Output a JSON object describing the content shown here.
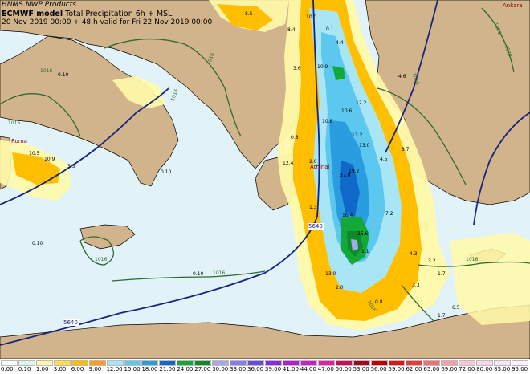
{
  "header": {
    "producer": "HNMS NWP Products",
    "model_name": "ECMWF model",
    "field": "Total Precipitation 6h + MSL",
    "valid": "20 Nov 2019 00:00 + 48 h valid for Fri 22 Nov 2019 00:00"
  },
  "places": [
    {
      "id": "athens",
      "label": "Athinai"
    },
    {
      "id": "ankara",
      "label": "Ankara"
    },
    {
      "id": "rome",
      "label": "Roma"
    }
  ],
  "geopotential_labels": [
    "5640",
    "5640"
  ],
  "isobar_labels": [
    "1016",
    "1016",
    "1016",
    "1016",
    "1016",
    "1016",
    "1016",
    "1016",
    "1016",
    "1020",
    "1020"
  ],
  "precip_values": [
    "8.5",
    "10.0",
    "0.1",
    "4.4",
    "8.4",
    "10.9",
    "12.2",
    "10.6",
    "13.2",
    "19.2",
    "13.0",
    "37.0",
    "10.8",
    "16.4",
    "25.6",
    "7.2",
    "4.3",
    "3.3",
    "1.7",
    "13.0",
    "0.8",
    "0.8",
    "3.6",
    "4.6",
    "12.4",
    "10.5",
    "10.9",
    "3.3",
    "2.0",
    "4.5",
    "8.7",
    "1.7",
    "6.5",
    "3.2",
    "1.1",
    "1.3",
    "2.0",
    "0.10",
    "0.10",
    "0.10",
    "0.10"
  ],
  "legend": {
    "values": [
      "0.00",
      "0.10",
      "1.00",
      "3.00",
      "6.00",
      "9.00",
      "12.00",
      "15.00",
      "18.00",
      "21.00",
      "24.00",
      "27.00",
      "30.00",
      "33.00",
      "36.00",
      "39.00",
      "41.00",
      "44.00",
      "47.00",
      "50.00",
      "53.00",
      "56.00",
      "59.00",
      "62.00",
      "65.00",
      "69.00",
      "72.00",
      "80.00",
      "85.00",
      "95.00"
    ],
    "colors": [
      "#ffffff",
      "#ddf4f7",
      "#fff9a8",
      "#ffe040",
      "#ffbf00",
      "#ff9a1a",
      "#a8e6f5",
      "#5cc8f0",
      "#2a9de0",
      "#1068c8",
      "#14a838",
      "#0c8a2c",
      "#a8a8e8",
      "#8a7ae8",
      "#6a4ae0",
      "#8a2ae0",
      "#b020d0",
      "#c81ec8",
      "#e01eb0",
      "#c8105a",
      "#a0081e",
      "#c00000",
      "#d81818",
      "#e83a3a",
      "#f07070",
      "#f5a0b0",
      "#f8c8d8",
      "#fad8e8",
      "#fce4f0",
      "#fef0f8"
    ]
  },
  "colors": {
    "land": "#d2b48c",
    "sea": "#e1f3f9",
    "isobar": "#2f6b2f",
    "geopotential": "#1a237e",
    "coast": "#000000"
  }
}
